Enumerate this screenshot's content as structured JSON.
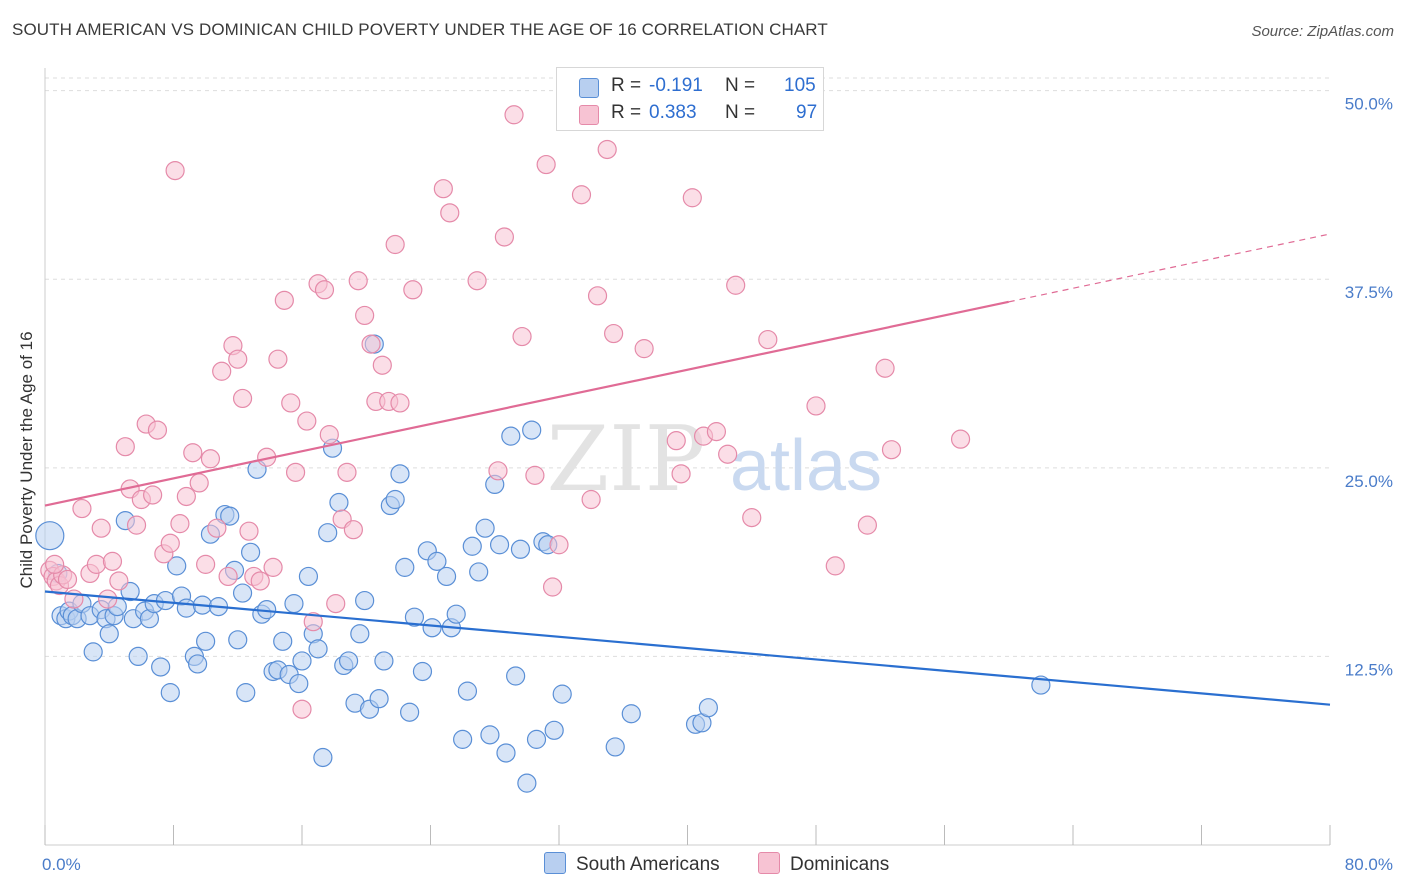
{
  "title": "SOUTH AMERICAN VS DOMINICAN CHILD POVERTY UNDER THE AGE OF 16 CORRELATION CHART",
  "source": "Source: ZipAtlas.com",
  "watermark": {
    "zip": "ZIP",
    "atlas": "atlas"
  },
  "colors": {
    "blue_fill": "#b8cff0",
    "blue_stroke": "#5a8fd6",
    "blue_line": "#2a6fd0",
    "pink_fill": "#f7c3d3",
    "pink_stroke": "#e58aa9",
    "pink_line": "#e06b95",
    "tick_text": "#4a7cc9",
    "grid": "#dddddd"
  },
  "legend": [
    {
      "r_label": "R =",
      "r_value": "-0.191",
      "n_label": "N =",
      "n_value": "105"
    },
    {
      "r_label": "R =",
      "r_value": "0.383",
      "n_label": "N =",
      "n_value": "97"
    }
  ],
  "series_names": [
    "South Americans",
    "Dominicans"
  ],
  "chart_data": {
    "type": "scatter",
    "title": "SOUTH AMERICAN VS DOMINICAN CHILD POVERTY UNDER THE AGE OF 16 CORRELATION CHART",
    "xlabel": "",
    "ylabel": "Child Poverty Under the Age of 16",
    "xlim": [
      0,
      80
    ],
    "ylim": [
      0,
      51.5
    ],
    "x_ticks": [
      "0.0%",
      "80.0%"
    ],
    "y_ticks": [
      {
        "value": 12.5,
        "label": "12.5%"
      },
      {
        "value": 25.0,
        "label": "25.0%"
      },
      {
        "value": 37.5,
        "label": "37.5%"
      },
      {
        "value": 50.0,
        "label": "50.0%"
      }
    ],
    "grid": "horizontal dashed",
    "legend_position": "top-center",
    "series": [
      {
        "name": "South Americans",
        "color": "#5a8fd6",
        "trend": {
          "x": [
            0,
            80
          ],
          "y": [
            16.8,
            9.3
          ],
          "style": "solid"
        },
        "points": [
          [
            0.3,
            20.5
          ],
          [
            0.8,
            18.0
          ],
          [
            1.0,
            15.2
          ],
          [
            1.3,
            15.0
          ],
          [
            1.5,
            15.5
          ],
          [
            1.7,
            15.2
          ],
          [
            2.0,
            15.0
          ],
          [
            2.3,
            16.0
          ],
          [
            2.8,
            15.2
          ],
          [
            3.0,
            12.8
          ],
          [
            3.5,
            15.6
          ],
          [
            3.8,
            15.0
          ],
          [
            4.0,
            14.0
          ],
          [
            4.3,
            15.2
          ],
          [
            4.5,
            15.8
          ],
          [
            5.0,
            21.5
          ],
          [
            5.3,
            16.8
          ],
          [
            5.5,
            15.0
          ],
          [
            5.8,
            12.5
          ],
          [
            6.2,
            15.5
          ],
          [
            6.5,
            15.0
          ],
          [
            6.8,
            16.0
          ],
          [
            7.2,
            11.8
          ],
          [
            7.5,
            16.2
          ],
          [
            7.8,
            10.1
          ],
          [
            8.2,
            18.5
          ],
          [
            8.5,
            16.5
          ],
          [
            8.8,
            15.7
          ],
          [
            9.3,
            12.5
          ],
          [
            9.5,
            12.0
          ],
          [
            9.8,
            15.9
          ],
          [
            10.0,
            13.5
          ],
          [
            10.3,
            20.6
          ],
          [
            10.8,
            15.8
          ],
          [
            11.2,
            21.9
          ],
          [
            11.5,
            21.8
          ],
          [
            11.8,
            18.2
          ],
          [
            12.0,
            13.6
          ],
          [
            12.3,
            16.7
          ],
          [
            12.5,
            10.1
          ],
          [
            12.8,
            19.4
          ],
          [
            13.2,
            24.9
          ],
          [
            13.5,
            15.3
          ],
          [
            13.8,
            15.6
          ],
          [
            14.2,
            11.5
          ],
          [
            14.5,
            11.6
          ],
          [
            14.8,
            13.5
          ],
          [
            15.2,
            11.3
          ],
          [
            15.5,
            16.0
          ],
          [
            15.8,
            10.7
          ],
          [
            16.0,
            12.2
          ],
          [
            16.4,
            17.8
          ],
          [
            16.7,
            14.0
          ],
          [
            17.0,
            13.0
          ],
          [
            17.3,
            5.8
          ],
          [
            17.6,
            20.7
          ],
          [
            17.9,
            26.3
          ],
          [
            18.3,
            22.7
          ],
          [
            18.6,
            11.9
          ],
          [
            18.9,
            12.2
          ],
          [
            19.3,
            9.4
          ],
          [
            19.6,
            14.0
          ],
          [
            19.9,
            16.2
          ],
          [
            20.2,
            9.0
          ],
          [
            20.5,
            33.2
          ],
          [
            20.8,
            9.7
          ],
          [
            21.1,
            12.2
          ],
          [
            21.5,
            22.5
          ],
          [
            21.8,
            22.9
          ],
          [
            22.1,
            24.6
          ],
          [
            22.4,
            18.4
          ],
          [
            22.7,
            8.8
          ],
          [
            23.0,
            15.1
          ],
          [
            23.5,
            11.5
          ],
          [
            23.8,
            19.5
          ],
          [
            24.1,
            14.4
          ],
          [
            24.4,
            18.8
          ],
          [
            25.0,
            17.8
          ],
          [
            25.3,
            14.4
          ],
          [
            25.6,
            15.3
          ],
          [
            26.0,
            7.0
          ],
          [
            26.3,
            10.2
          ],
          [
            26.6,
            19.8
          ],
          [
            27.0,
            18.1
          ],
          [
            27.4,
            21.0
          ],
          [
            27.7,
            7.3
          ],
          [
            28.0,
            23.9
          ],
          [
            28.3,
            19.9
          ],
          [
            28.7,
            6.1
          ],
          [
            29.0,
            27.1
          ],
          [
            29.3,
            11.2
          ],
          [
            29.6,
            19.6
          ],
          [
            30.0,
            4.1
          ],
          [
            30.3,
            27.5
          ],
          [
            30.6,
            7.0
          ],
          [
            31.0,
            20.1
          ],
          [
            31.3,
            19.9
          ],
          [
            31.7,
            7.6
          ],
          [
            32.2,
            10.0
          ],
          [
            35.5,
            6.5
          ],
          [
            36.5,
            8.7
          ],
          [
            40.5,
            8.0
          ],
          [
            40.9,
            8.1
          ],
          [
            41.3,
            9.1
          ],
          [
            62.0,
            10.6
          ]
        ]
      },
      {
        "name": "Dominicans",
        "color": "#e58aa9",
        "trend": {
          "x": [
            0,
            60
          ],
          "y": [
            22.5,
            36.0
          ],
          "x_dash_end": 80,
          "y_dash_end": 40.5,
          "style": "solid then dashed"
        },
        "points": [
          [
            0.3,
            18.2
          ],
          [
            0.5,
            17.8
          ],
          [
            0.7,
            17.5
          ],
          [
            0.9,
            17.2
          ],
          [
            1.1,
            17.9
          ],
          [
            1.4,
            17.6
          ],
          [
            1.8,
            16.3
          ],
          [
            2.3,
            22.3
          ],
          [
            2.8,
            18.0
          ],
          [
            3.2,
            18.6
          ],
          [
            3.5,
            21.0
          ],
          [
            3.9,
            16.3
          ],
          [
            4.2,
            18.8
          ],
          [
            4.6,
            17.5
          ],
          [
            5.0,
            26.4
          ],
          [
            5.3,
            23.6
          ],
          [
            5.7,
            21.2
          ],
          [
            6.0,
            22.9
          ],
          [
            6.3,
            27.9
          ],
          [
            6.7,
            23.2
          ],
          [
            7.0,
            27.5
          ],
          [
            7.4,
            19.3
          ],
          [
            7.8,
            20.0
          ],
          [
            8.1,
            44.7
          ],
          [
            8.4,
            21.3
          ],
          [
            8.8,
            23.1
          ],
          [
            9.2,
            26.0
          ],
          [
            9.6,
            24.0
          ],
          [
            10.0,
            18.6
          ],
          [
            10.3,
            25.6
          ],
          [
            10.7,
            21.0
          ],
          [
            11.0,
            31.4
          ],
          [
            11.4,
            17.8
          ],
          [
            11.7,
            33.1
          ],
          [
            12.0,
            32.2
          ],
          [
            12.3,
            29.6
          ],
          [
            12.7,
            20.8
          ],
          [
            13.0,
            17.8
          ],
          [
            13.4,
            17.5
          ],
          [
            13.8,
            25.7
          ],
          [
            14.2,
            18.4
          ],
          [
            14.5,
            32.2
          ],
          [
            14.9,
            36.1
          ],
          [
            15.3,
            29.3
          ],
          [
            15.6,
            24.7
          ],
          [
            16.0,
            9.0
          ],
          [
            16.3,
            28.1
          ],
          [
            16.7,
            14.8
          ],
          [
            17.0,
            37.2
          ],
          [
            17.4,
            36.8
          ],
          [
            17.7,
            27.2
          ],
          [
            18.1,
            16.0
          ],
          [
            18.5,
            21.6
          ],
          [
            18.8,
            24.7
          ],
          [
            19.2,
            20.9
          ],
          [
            19.5,
            37.4
          ],
          [
            19.9,
            35.1
          ],
          [
            20.3,
            33.2
          ],
          [
            20.6,
            29.4
          ],
          [
            21.0,
            31.8
          ],
          [
            21.4,
            29.4
          ],
          [
            21.8,
            39.8
          ],
          [
            22.1,
            29.3
          ],
          [
            22.9,
            36.8
          ],
          [
            24.8,
            43.5
          ],
          [
            25.2,
            41.9
          ],
          [
            26.9,
            37.4
          ],
          [
            28.2,
            24.8
          ],
          [
            28.6,
            40.3
          ],
          [
            29.2,
            48.4
          ],
          [
            29.7,
            33.7
          ],
          [
            30.5,
            24.5
          ],
          [
            31.2,
            45.1
          ],
          [
            31.6,
            17.1
          ],
          [
            32.0,
            19.9
          ],
          [
            33.4,
            43.1
          ],
          [
            34.0,
            22.9
          ],
          [
            34.4,
            36.4
          ],
          [
            35.0,
            46.1
          ],
          [
            35.4,
            33.9
          ],
          [
            37.3,
            32.9
          ],
          [
            39.3,
            26.8
          ],
          [
            39.6,
            24.6
          ],
          [
            40.3,
            42.9
          ],
          [
            41.0,
            27.1
          ],
          [
            41.8,
            27.4
          ],
          [
            42.5,
            25.9
          ],
          [
            43.0,
            37.1
          ],
          [
            44.0,
            21.7
          ],
          [
            45.0,
            33.5
          ],
          [
            48.0,
            29.1
          ],
          [
            49.2,
            18.5
          ],
          [
            51.2,
            21.2
          ],
          [
            52.3,
            31.6
          ],
          [
            52.7,
            26.2
          ],
          [
            57.0,
            26.9
          ],
          [
            0.6,
            18.6
          ]
        ]
      }
    ]
  }
}
